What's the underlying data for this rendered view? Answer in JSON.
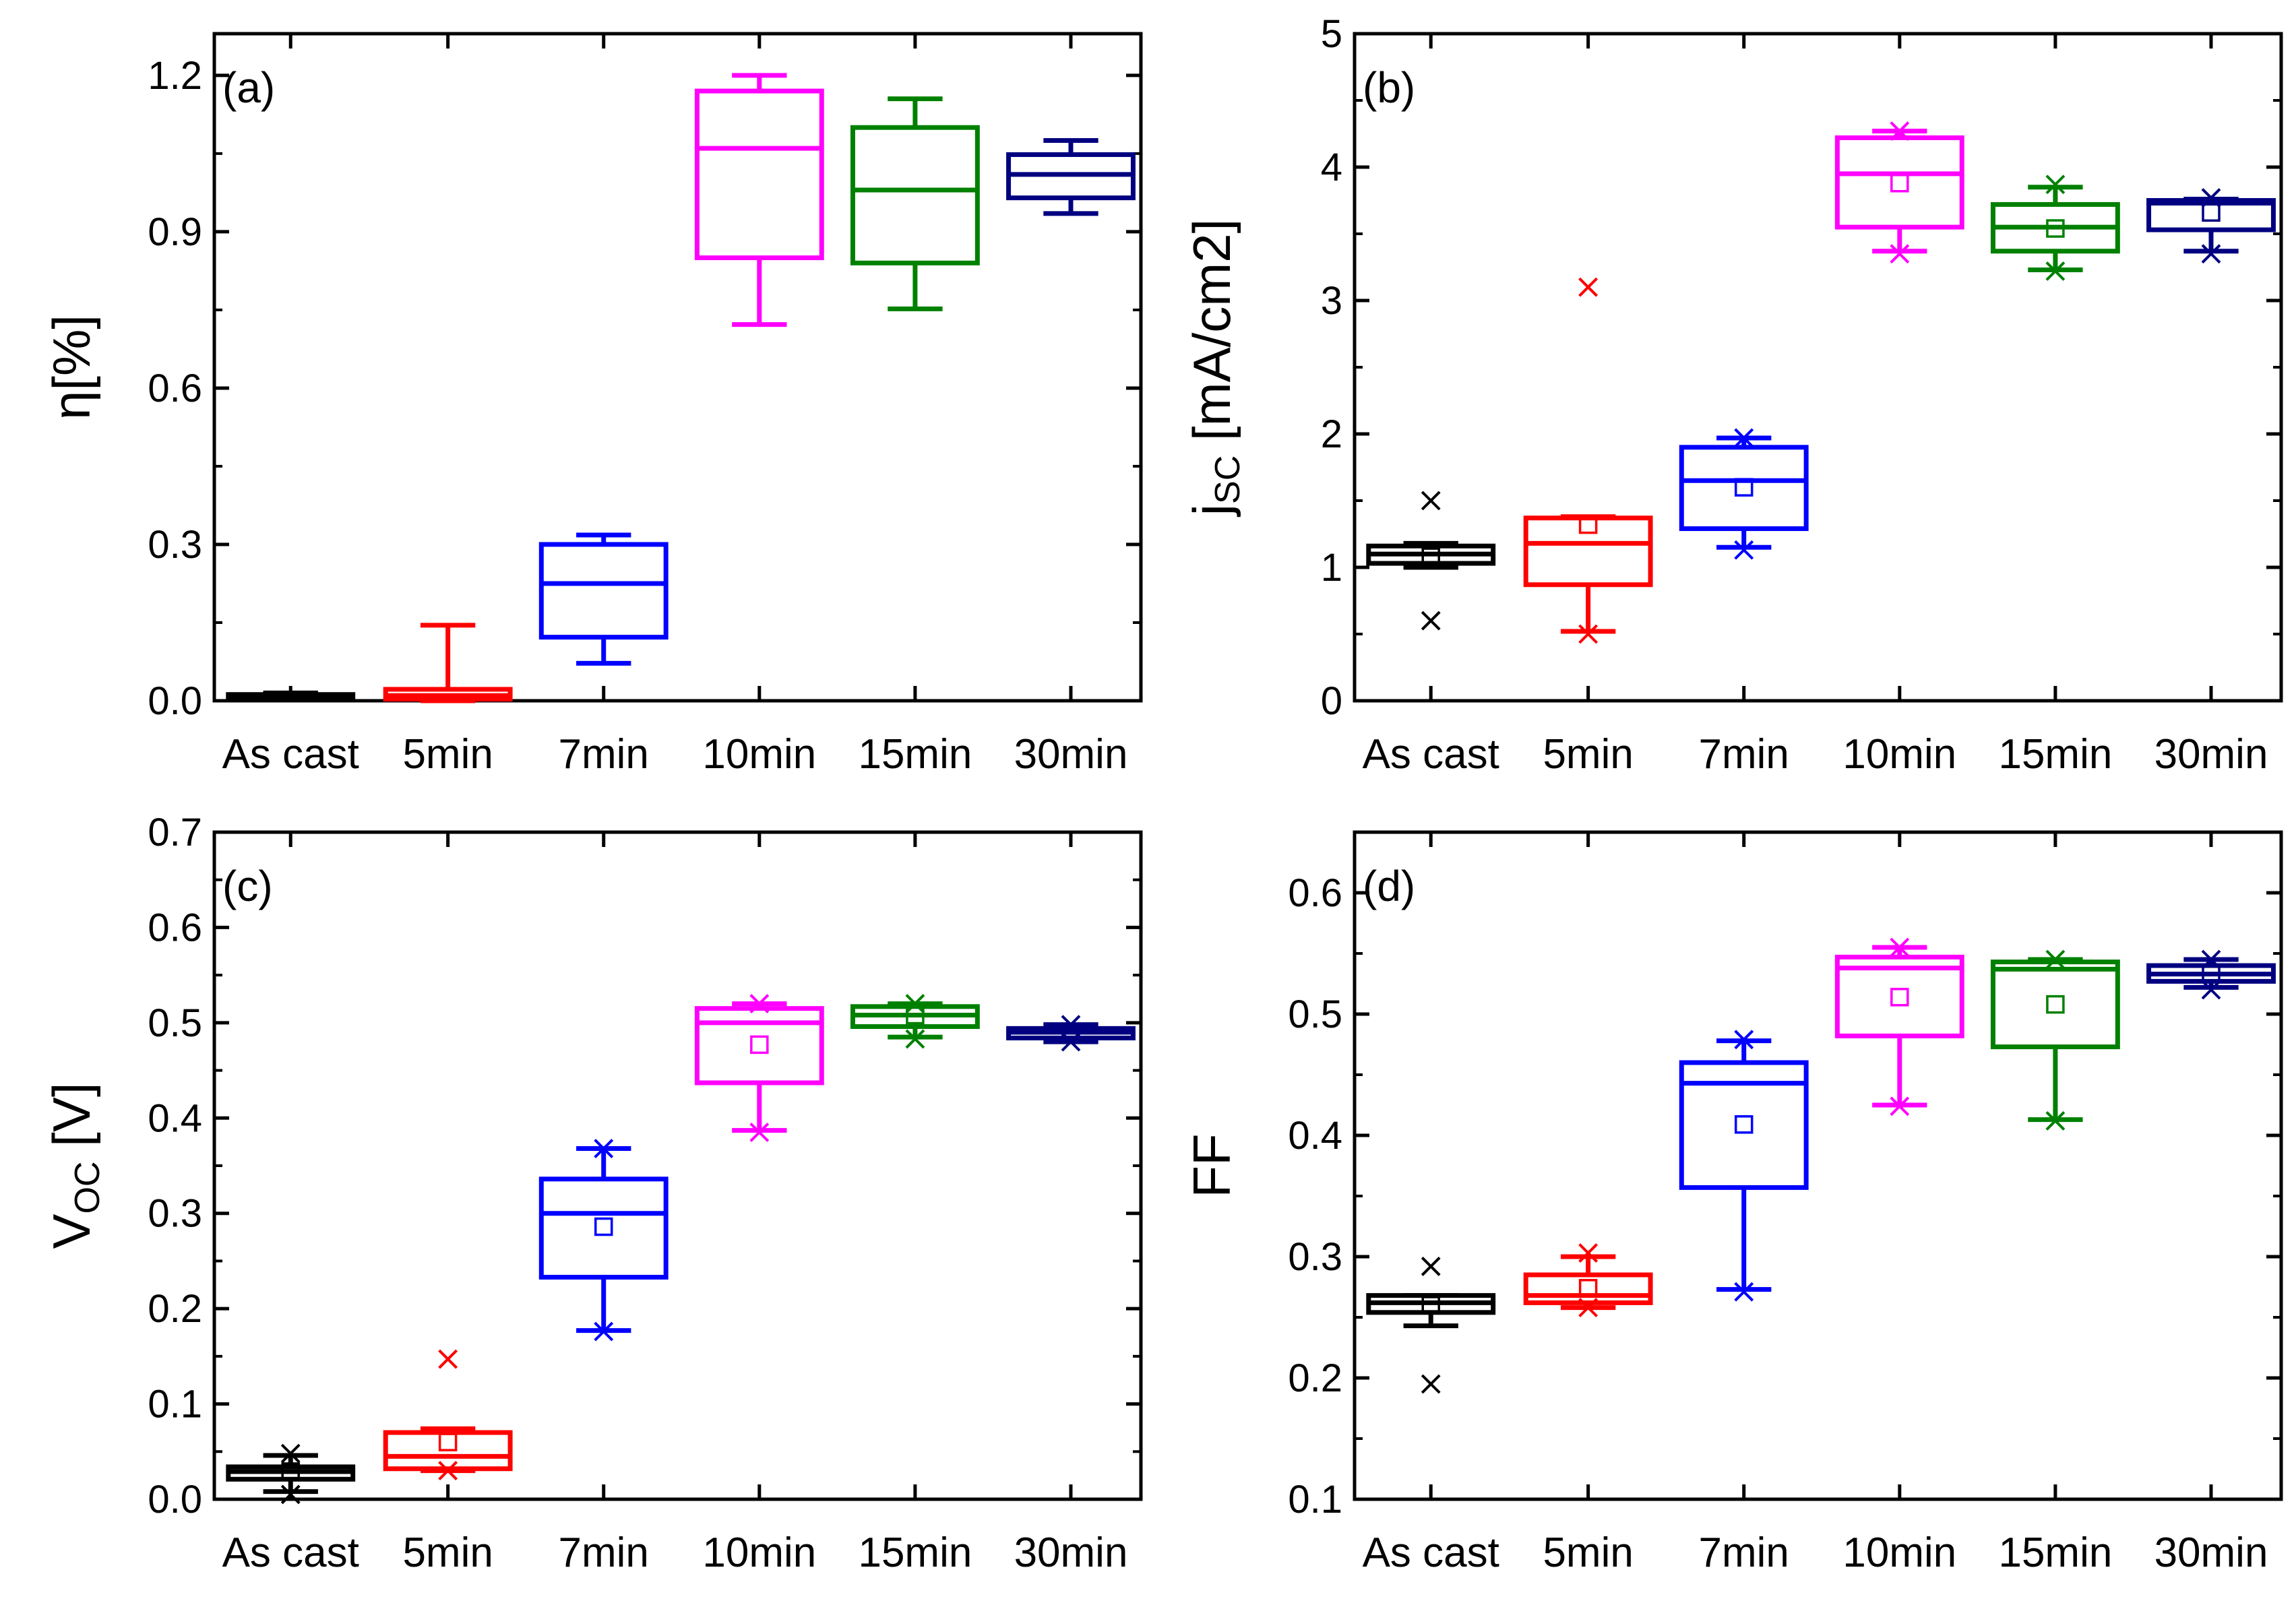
{
  "colors": {
    "As cast": "#000000",
    "5min": "#ff0000",
    "7min": "#0000ff",
    "10min": "#ff00ff",
    "15min": "#008000",
    "30min": "#000080"
  },
  "chart_data": [
    {
      "type": "box",
      "panel": "(a)",
      "ylabel": "η[%]",
      "categories": [
        "As cast",
        "5min",
        "7min",
        "10min",
        "15min",
        "30min"
      ],
      "ylim": [
        0,
        1.28
      ],
      "yticks": [
        "0.0",
        "0.3",
        "0.6",
        "0.9",
        "1.2"
      ],
      "ytick_values": [
        0,
        0.3,
        0.6,
        0.9,
        1.2
      ],
      "ytick_minor": 0.15,
      "boxes": [
        {
          "q1": 0.005,
          "median": 0.008,
          "q3": 0.012,
          "whisker_low": 0.004,
          "whisker_high": 0.015
        },
        {
          "q1": 0.003,
          "median": 0.01,
          "q3": 0.022,
          "whisker_low": 0.0,
          "whisker_high": 0.145
        },
        {
          "q1": 0.122,
          "median": 0.225,
          "q3": 0.3,
          "whisker_low": 0.072,
          "whisker_high": 0.318
        },
        {
          "q1": 0.85,
          "median": 1.06,
          "q3": 1.17,
          "whisker_low": 0.722,
          "whisker_high": 1.2
        },
        {
          "q1": 0.84,
          "median": 0.98,
          "q3": 1.1,
          "whisker_low": 0.752,
          "whisker_high": 1.155
        },
        {
          "q1": 0.965,
          "median": 1.01,
          "q3": 1.048,
          "whisker_low": 0.935,
          "whisker_high": 1.075
        }
      ]
    },
    {
      "type": "box",
      "panel": "(b)",
      "ylabel": "j",
      "ylabel_sub": "SC",
      "ylabel_rest": " [mA/cm2]",
      "categories": [
        "As cast",
        "5min",
        "7min",
        "10min",
        "15min",
        "30min"
      ],
      "ylim": [
        0,
        5
      ],
      "yticks": [
        "0",
        "1",
        "2",
        "3",
        "4",
        "5"
      ],
      "ytick_values": [
        0,
        1,
        2,
        3,
        4,
        5
      ],
      "ytick_minor": 0.5,
      "boxes": [
        {
          "q1": 1.03,
          "median": 1.1,
          "q3": 1.16,
          "whisker_low": 1.0,
          "whisker_high": 1.18,
          "mean": 1.08,
          "outliers": [
            0.6,
            1.5
          ]
        },
        {
          "q1": 0.87,
          "median": 1.18,
          "q3": 1.37,
          "whisker_low": 0.52,
          "whisker_high": 1.38,
          "mean": 1.32,
          "outliers": [
            0.5,
            3.1
          ]
        },
        {
          "q1": 1.29,
          "median": 1.65,
          "q3": 1.9,
          "whisker_low": 1.15,
          "whisker_high": 1.97,
          "mean": 1.6,
          "outliers": [
            1.13,
            1.97
          ]
        },
        {
          "q1": 3.55,
          "median": 3.95,
          "q3": 4.22,
          "whisker_low": 3.37,
          "whisker_high": 4.27,
          "mean": 3.88,
          "outliers": [
            3.35,
            4.27
          ]
        },
        {
          "q1": 3.37,
          "median": 3.55,
          "q3": 3.72,
          "whisker_low": 3.23,
          "whisker_high": 3.85,
          "mean": 3.54,
          "outliers": [
            3.22,
            3.87
          ]
        },
        {
          "q1": 3.53,
          "median": 3.73,
          "q3": 3.75,
          "whisker_low": 3.37,
          "whisker_high": 3.76,
          "mean": 3.66,
          "outliers": [
            3.35,
            3.77
          ]
        }
      ]
    },
    {
      "type": "box",
      "panel": "(c)",
      "ylabel": "V",
      "ylabel_sub": "OC",
      "ylabel_rest": " [V]",
      "categories": [
        "As cast",
        "5min",
        "7min",
        "10min",
        "15min",
        "30min"
      ],
      "ylim": [
        0,
        0.7
      ],
      "yticks": [
        "0.0",
        "0.1",
        "0.2",
        "0.3",
        "0.4",
        "0.5",
        "0.6",
        "0.7"
      ],
      "ytick_values": [
        0,
        0.1,
        0.2,
        0.3,
        0.4,
        0.5,
        0.6,
        0.7
      ],
      "ytick_minor": 0.05,
      "boxes": [
        {
          "q1": 0.021,
          "median": 0.029,
          "q3": 0.034,
          "whisker_low": 0.008,
          "whisker_high": 0.046,
          "mean": 0.029,
          "outliers": [
            0.005,
            0.048
          ]
        },
        {
          "q1": 0.032,
          "median": 0.045,
          "q3": 0.07,
          "whisker_low": 0.03,
          "whisker_high": 0.074,
          "mean": 0.06,
          "outliers": [
            0.03,
            0.147
          ]
        },
        {
          "q1": 0.233,
          "median": 0.3,
          "q3": 0.336,
          "whisker_low": 0.177,
          "whisker_high": 0.368,
          "mean": 0.286,
          "outliers": [
            0.176,
            0.368
          ]
        },
        {
          "q1": 0.437,
          "median": 0.5,
          "q3": 0.515,
          "whisker_low": 0.387,
          "whisker_high": 0.52,
          "mean": 0.477,
          "outliers": [
            0.385,
            0.52
          ]
        },
        {
          "q1": 0.496,
          "median": 0.508,
          "q3": 0.517,
          "whisker_low": 0.485,
          "whisker_high": 0.52,
          "mean": 0.508,
          "outliers": [
            0.483,
            0.52
          ]
        },
        {
          "q1": 0.484,
          "median": 0.49,
          "q3": 0.494,
          "whisker_low": 0.48,
          "whisker_high": 0.498,
          "mean": 0.489,
          "outliers": [
            0.48,
            0.498
          ]
        }
      ]
    },
    {
      "type": "box",
      "panel": "(d)",
      "ylabel": "FF",
      "categories": [
        "As cast",
        "5min",
        "7min",
        "10min",
        "15min",
        "30min"
      ],
      "ylim": [
        0.1,
        0.65
      ],
      "yticks": [
        "0.1",
        "0.2",
        "0.3",
        "0.4",
        "0.5",
        "0.6"
      ],
      "ytick_values": [
        0.1,
        0.2,
        0.3,
        0.4,
        0.5,
        0.6
      ],
      "ytick_minor": 0.05,
      "boxes": [
        {
          "q1": 0.254,
          "median": 0.262,
          "q3": 0.268,
          "whisker_low": 0.243,
          "whisker_high": 0.268,
          "mean": 0.26,
          "outliers": [
            0.195,
            0.292
          ]
        },
        {
          "q1": 0.262,
          "median": 0.268,
          "q3": 0.285,
          "whisker_low": 0.258,
          "whisker_high": 0.3,
          "mean": 0.274,
          "outliers": [
            0.258,
            0.303
          ]
        },
        {
          "q1": 0.357,
          "median": 0.443,
          "q3": 0.46,
          "whisker_low": 0.273,
          "whisker_high": 0.478,
          "mean": 0.409,
          "outliers": [
            0.271,
            0.479
          ]
        },
        {
          "q1": 0.482,
          "median": 0.538,
          "q3": 0.547,
          "whisker_low": 0.425,
          "whisker_high": 0.555,
          "mean": 0.514,
          "outliers": [
            0.424,
            0.555
          ]
        },
        {
          "q1": 0.473,
          "median": 0.537,
          "q3": 0.543,
          "whisker_low": 0.413,
          "whisker_high": 0.545,
          "mean": 0.508,
          "outliers": [
            0.412,
            0.545
          ]
        },
        {
          "q1": 0.527,
          "median": 0.533,
          "q3": 0.54,
          "whisker_low": 0.522,
          "whisker_high": 0.545,
          "mean": 0.533,
          "outliers": [
            0.52,
            0.545
          ]
        }
      ]
    }
  ]
}
